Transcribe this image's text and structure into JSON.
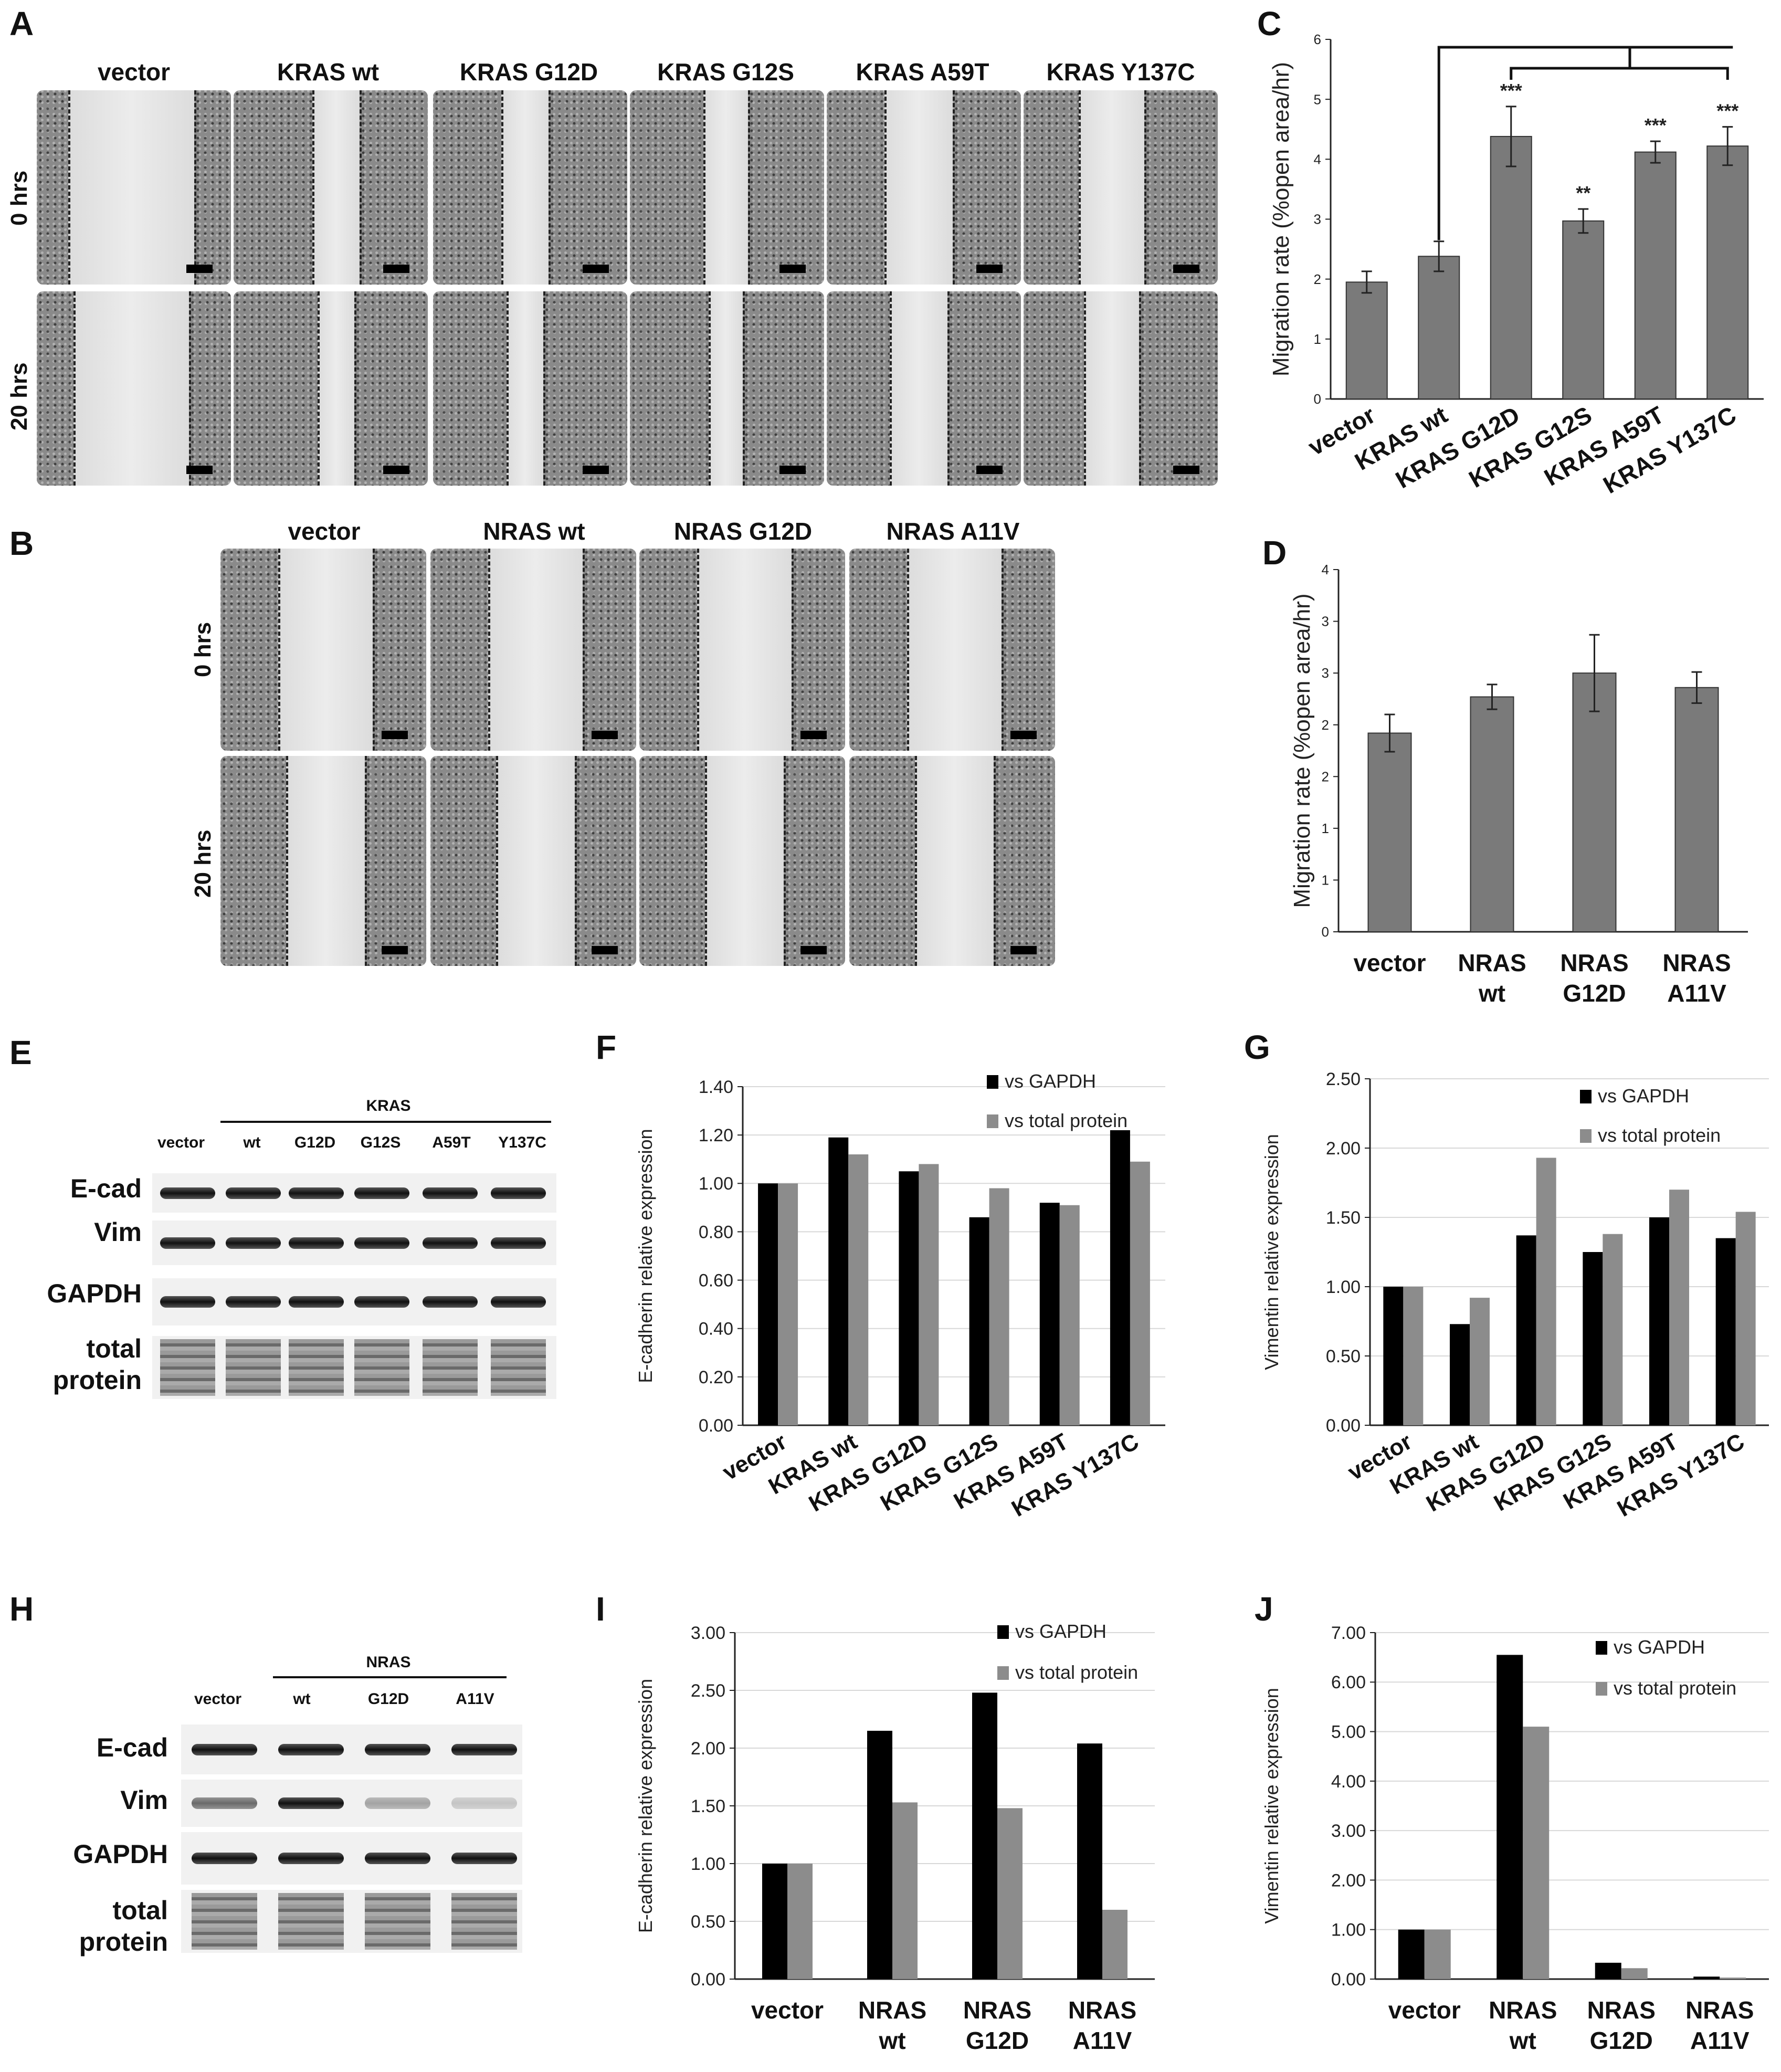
{
  "panel_labels": {
    "A": "A",
    "B": "B",
    "C": "C",
    "D": "D",
    "E": "E",
    "F": "F",
    "G": "G",
    "H": "H",
    "I": "I",
    "J": "J"
  },
  "panelA": {
    "columns": [
      "vector",
      "KRAS wt",
      "KRAS G12D",
      "KRAS G12S",
      "KRAS A59T",
      "KRAS Y137C"
    ],
    "rows": [
      "0 hrs",
      "20 hrs"
    ]
  },
  "panelB": {
    "columns": [
      "vector",
      "NRAS wt",
      "NRAS G12D",
      "NRAS A11V"
    ],
    "rows": [
      "0 hrs",
      "20 hrs"
    ]
  },
  "panelE": {
    "group_label": "KRAS",
    "lanes": [
      "vector",
      "wt",
      "G12D",
      "G12S",
      "A59T",
      "Y137C"
    ],
    "rows": [
      "E-cad",
      "Vim",
      "GAPDH",
      "total protein"
    ],
    "total_line1": "total",
    "total_line2": "protein"
  },
  "panelH": {
    "group_label": "NRAS",
    "lanes": [
      "vector",
      "wt",
      "G12D",
      "A11V"
    ],
    "rows": [
      "E-cad",
      "Vim",
      "GAPDH",
      "total protein"
    ],
    "total_line1": "total",
    "total_line2": "protein"
  },
  "chart_data": [
    {
      "id": "C",
      "type": "bar",
      "categories": [
        "vector",
        "KRAS wt",
        "KRAS G12D",
        "KRAS G12S",
        "KRAS A59T",
        "KRAS Y137C"
      ],
      "values": [
        1.95,
        2.38,
        4.38,
        2.97,
        4.12,
        4.22
      ],
      "errors": [
        0.18,
        0.25,
        0.5,
        0.2,
        0.18,
        0.32
      ],
      "significance": [
        "",
        "",
        "***",
        "**",
        "***",
        "***"
      ],
      "ylabel": "Migration rate (%open area/hr)",
      "ylim": [
        0,
        6
      ],
      "yticks": [
        "0",
        "1",
        "2",
        "3",
        "4",
        "5",
        "6"
      ],
      "xlabel_rotation": "diagonal"
    },
    {
      "id": "D",
      "type": "bar",
      "categories": [
        [
          "vector"
        ],
        [
          "NRAS",
          "wt"
        ],
        [
          "NRAS",
          "G12D"
        ],
        [
          "NRAS",
          "A11V"
        ]
      ],
      "values": [
        1.92,
        2.27,
        2.5,
        2.36
      ],
      "errors": [
        0.18,
        0.12,
        0.37,
        0.15
      ],
      "ylabel": "Migration rate (%open area/hr)",
      "ylim": [
        0,
        3.5
      ],
      "yticks": [
        "0",
        "1",
        "1",
        "2",
        "2",
        "3",
        "3",
        "4"
      ]
    },
    {
      "id": "F",
      "type": "bar",
      "categories": [
        "vector",
        "KRAS wt",
        "KRAS G12D",
        "KRAS G12S",
        "KRAS A59T",
        "KRAS Y137C"
      ],
      "series": [
        {
          "name": "vs GAPDH",
          "color": "#000000",
          "values": [
            1.0,
            1.19,
            1.05,
            0.86,
            0.92,
            1.22
          ]
        },
        {
          "name": "vs total protein",
          "color": "#8c8c8c",
          "values": [
            1.0,
            1.12,
            1.08,
            0.98,
            0.91,
            1.09
          ]
        }
      ],
      "ylabel": "E-cadherin relative expression",
      "ylim": [
        0,
        1.4
      ],
      "yticks": [
        "0.00",
        "0.20",
        "0.40",
        "0.60",
        "0.80",
        "1.00",
        "1.20",
        "1.40"
      ],
      "xlabel_rotation": "diagonal"
    },
    {
      "id": "G",
      "type": "bar",
      "categories": [
        "vector",
        "KRAS wt",
        "KRAS G12D",
        "KRAS G12S",
        "KRAS A59T",
        "KRAS Y137C"
      ],
      "series": [
        {
          "name": "vs GAPDH",
          "color": "#000000",
          "values": [
            1.0,
            0.73,
            1.37,
            1.25,
            1.5,
            1.35
          ]
        },
        {
          "name": "vs total protein",
          "color": "#8c8c8c",
          "values": [
            1.0,
            0.92,
            1.93,
            1.38,
            1.7,
            1.54
          ]
        }
      ],
      "ylabel": "Vimentin relative expression",
      "ylim": [
        0,
        2.5
      ],
      "yticks": [
        "0.00",
        "0.50",
        "1.00",
        "1.50",
        "2.00",
        "2.50"
      ],
      "xlabel_rotation": "diagonal"
    },
    {
      "id": "I",
      "type": "bar",
      "categories": [
        [
          "vector"
        ],
        [
          "NRAS",
          "wt"
        ],
        [
          "NRAS",
          "G12D"
        ],
        [
          "NRAS",
          "A11V"
        ]
      ],
      "series": [
        {
          "name": "vs GAPDH",
          "color": "#000000",
          "values": [
            1.0,
            2.15,
            2.48,
            2.04
          ]
        },
        {
          "name": "vs total protein",
          "color": "#8c8c8c",
          "values": [
            1.0,
            1.53,
            1.48,
            0.6
          ]
        }
      ],
      "ylabel": "E-cadherin relative expression",
      "ylim": [
        0,
        3.0
      ],
      "yticks": [
        "0.00",
        "0.50",
        "1.00",
        "1.50",
        "2.00",
        "2.50",
        "3.00"
      ]
    },
    {
      "id": "J",
      "type": "bar",
      "categories": [
        [
          "vector"
        ],
        [
          "NRAS",
          "wt"
        ],
        [
          "NRAS",
          "G12D"
        ],
        [
          "NRAS",
          "A11V"
        ]
      ],
      "series": [
        {
          "name": "vs GAPDH",
          "color": "#000000",
          "values": [
            1.0,
            6.55,
            0.33,
            0.05
          ]
        },
        {
          "name": "vs total protein",
          "color": "#8c8c8c",
          "values": [
            1.0,
            5.1,
            0.22,
            0.03
          ]
        }
      ],
      "ylabel": "Vimentin relative expression",
      "ylim": [
        0,
        7.0
      ],
      "yticks": [
        "0.00",
        "1.00",
        "2.00",
        "3.00",
        "4.00",
        "5.00",
        "6.00",
        "7.00"
      ]
    }
  ]
}
